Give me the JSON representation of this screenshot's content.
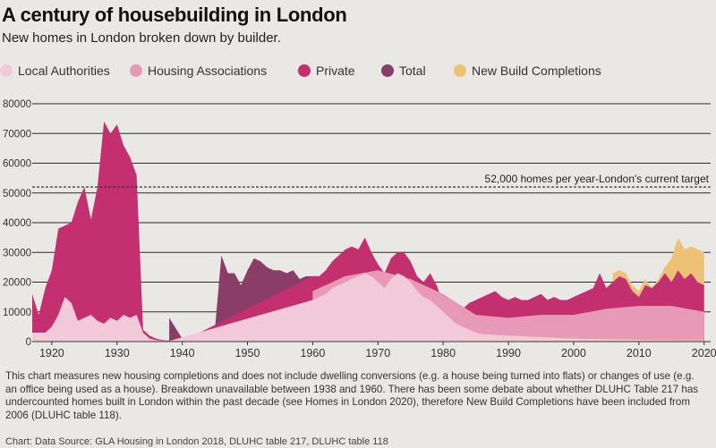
{
  "title": "A century of housebuilding in London",
  "subtitle": "New homes in London broken down by builder.",
  "legend": [
    {
      "label": "Local Authorities",
      "color": "#f2c9d9"
    },
    {
      "label": "Housing Associations",
      "color": "#e79ab8"
    },
    {
      "label": "Private",
      "color": "#c4306f"
    },
    {
      "label": "Total",
      "color": "#8a3d66"
    },
    {
      "label": "New Build Completions",
      "color": "#eec276"
    }
  ],
  "target_label": "52,000 homes per year-London's current target",
  "note": "This chart measures new housing completions and does not include dwelling conversions (e.g. a house being turned into flats) or changes of use (e.g. an office being used as a house). Breakdown unavailable between 1938 and 1960. There has been some debate about whether DLUHC Table 217 has undercounted homes built in London within the past decade (see Homes in London 2020), therefore New Build Completions have been included from 2006 (DLUHC table 118).",
  "source": "Chart: Data Source: GLA Housing in London 2018, DLUHC table 217, DLUHC table 118",
  "chart_data": {
    "type": "area",
    "xlim": [
      1917,
      2021
    ],
    "ylim": [
      0,
      80000
    ],
    "y_ticks": [
      0,
      10000,
      20000,
      30000,
      40000,
      50000,
      60000,
      70000,
      80000
    ],
    "x_ticks": [
      1920,
      1930,
      1940,
      1950,
      1960,
      1970,
      1980,
      1990,
      2000,
      2010,
      2020
    ],
    "target": 52000,
    "grid": true,
    "legend_position": "top",
    "series": [
      {
        "name": "New Build Completions",
        "x": [
          2006,
          2007,
          2008,
          2009,
          2010,
          2011,
          2012,
          2013,
          2014,
          2015,
          2016,
          2017,
          2018,
          2019,
          2020
        ],
        "y": [
          23000,
          24000,
          23000,
          19000,
          17000,
          21000,
          18000,
          21000,
          25000,
          28000,
          35000,
          31000,
          32000,
          31000,
          30000
        ]
      },
      {
        "name": "Total",
        "x": [
          1938,
          1940,
          1944,
          1945,
          1946,
          1947,
          1948,
          1949,
          1950,
          1951,
          1952,
          1953,
          1954,
          1955,
          1956,
          1957,
          1958,
          1959,
          1960
        ],
        "y": [
          8000,
          1000,
          500,
          4000,
          29000,
          23000,
          23000,
          19000,
          24000,
          28000,
          27000,
          25000,
          24000,
          24000,
          23000,
          24000,
          21000,
          22000,
          22000
        ]
      },
      {
        "name": "Private",
        "x": [
          1917,
          1918,
          1919,
          1920,
          1921,
          1922,
          1923,
          1924,
          1925,
          1926,
          1927,
          1928,
          1929,
          1930,
          1931,
          1932,
          1933,
          1934,
          1935,
          1936,
          1937,
          1938,
          1939,
          1940,
          1960,
          1961,
          1962,
          1963,
          1964,
          1965,
          1966,
          1967,
          1968,
          1969,
          1970,
          1971,
          1972,
          1973,
          1974,
          1975,
          1976,
          1977,
          1978,
          1979,
          1980,
          1981,
          1982,
          1983,
          1984,
          1985,
          1986,
          1987,
          1988,
          1989,
          1990,
          1991,
          1992,
          1993,
          1994,
          1995,
          1996,
          1997,
          1998,
          1999,
          2000,
          2001,
          2002,
          2003,
          2004,
          2005,
          2006,
          2007,
          2008,
          2009,
          2010,
          2011,
          2012,
          2013,
          2014,
          2015,
          2016,
          2017,
          2018,
          2019,
          2020
        ],
        "y": [
          16000,
          9000,
          18000,
          24000,
          38000,
          39000,
          40000,
          47000,
          52000,
          41000,
          52000,
          74000,
          70000,
          73000,
          66000,
          62000,
          56000,
          4000,
          2000,
          1000,
          500,
          300,
          200,
          100,
          22000,
          22000,
          24000,
          27000,
          29000,
          31000,
          32000,
          31000,
          35000,
          30000,
          26000,
          23000,
          28000,
          30000,
          30000,
          27000,
          22000,
          20000,
          23000,
          19000,
          13000,
          12000,
          11000,
          11000,
          13000,
          14000,
          15000,
          16000,
          17000,
          15000,
          14000,
          15000,
          14000,
          14000,
          15000,
          16000,
          14000,
          15000,
          14000,
          14000,
          15000,
          16000,
          17000,
          18000,
          23000,
          18000,
          20000,
          22000,
          21000,
          17000,
          15000,
          19000,
          18000,
          20000,
          23000,
          20000,
          24000,
          21000,
          23000,
          20000,
          19000
        ]
      },
      {
        "name": "Housing Associations",
        "x": [
          1960,
          1965,
          1970,
          1975,
          1980,
          1985,
          1990,
          1995,
          2000,
          2005,
          2010,
          2015,
          2020
        ],
        "y": [
          17000,
          22000,
          24000,
          21000,
          16000,
          9000,
          8000,
          9000,
          9000,
          11000,
          12000,
          12000,
          10000
        ]
      },
      {
        "name": "Local Authorities",
        "x": [
          1917,
          1919,
          1920,
          1921,
          1922,
          1923,
          1924,
          1925,
          1926,
          1927,
          1928,
          1929,
          1930,
          1931,
          1932,
          1933,
          1934,
          1935,
          1936,
          1937,
          1938,
          1960,
          1961,
          1962,
          1963,
          1964,
          1965,
          1966,
          1967,
          1968,
          1969,
          1970,
          1971,
          1972,
          1973,
          1974,
          1975,
          1976,
          1977,
          1978,
          1979,
          1980,
          1981,
          1982,
          1983,
          1984,
          1985,
          1986,
          1990,
          1995,
          2000,
          2005,
          2010,
          2015,
          2020
        ],
        "y": [
          3000,
          3000,
          5000,
          9000,
          15000,
          13000,
          7000,
          8000,
          9000,
          7000,
          6000,
          8000,
          7000,
          9000,
          8000,
          9000,
          3000,
          1000,
          500,
          300,
          200,
          14000,
          15000,
          16000,
          18000,
          19000,
          20000,
          21000,
          22000,
          23000,
          22000,
          20000,
          18000,
          21000,
          23000,
          22000,
          20000,
          17000,
          15000,
          14000,
          12000,
          10000,
          8000,
          6000,
          5000,
          4000,
          3000,
          2500,
          2000,
          1500,
          1000,
          800,
          600,
          500,
          400
        ]
      }
    ]
  }
}
